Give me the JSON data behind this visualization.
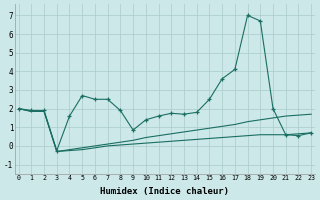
{
  "xlabel": "Humidex (Indice chaleur)",
  "bg_color": "#cce8e8",
  "grid_color": "#aacccc",
  "line_color": "#1a6e62",
  "ylim": [
    -1.5,
    7.6
  ],
  "xlim": [
    -0.3,
    23.3
  ],
  "yticks": [
    -1,
    0,
    1,
    2,
    3,
    4,
    5,
    6,
    7
  ],
  "xticks": [
    0,
    1,
    2,
    3,
    4,
    5,
    6,
    7,
    8,
    9,
    10,
    11,
    12,
    13,
    14,
    15,
    16,
    17,
    18,
    19,
    20,
    21,
    22,
    23
  ],
  "line1_x": [
    0,
    1,
    2,
    3,
    4,
    5,
    6,
    7,
    8,
    9,
    10,
    11,
    12,
    13,
    14,
    15,
    16,
    17,
    18,
    19,
    20,
    21,
    22,
    23
  ],
  "line1_y": [
    2.0,
    1.9,
    1.9,
    -0.25,
    1.6,
    2.7,
    2.5,
    2.5,
    1.9,
    0.85,
    1.4,
    1.6,
    1.75,
    1.7,
    1.8,
    2.5,
    3.6,
    4.1,
    7.0,
    6.7,
    2.0,
    0.6,
    0.55,
    0.7
  ],
  "line2_x": [
    0,
    1,
    2,
    3,
    4,
    5,
    6,
    7,
    8,
    9,
    10,
    11,
    12,
    13,
    14,
    15,
    16,
    17,
    18,
    19,
    20,
    21,
    22,
    23
  ],
  "line2_y": [
    2.0,
    1.85,
    1.85,
    -0.3,
    -0.2,
    -0.1,
    0.0,
    0.1,
    0.2,
    0.3,
    0.45,
    0.55,
    0.65,
    0.75,
    0.85,
    0.95,
    1.05,
    1.15,
    1.3,
    1.4,
    1.5,
    1.6,
    1.65,
    1.7
  ],
  "line3_x": [
    0,
    1,
    2,
    3,
    4,
    5,
    6,
    7,
    8,
    9,
    10,
    11,
    12,
    13,
    14,
    15,
    16,
    17,
    18,
    19,
    20,
    21,
    22,
    23
  ],
  "line3_y": [
    2.0,
    1.85,
    1.85,
    -0.3,
    -0.25,
    -0.2,
    -0.1,
    0.0,
    0.05,
    0.1,
    0.15,
    0.2,
    0.25,
    0.3,
    0.35,
    0.4,
    0.45,
    0.5,
    0.55,
    0.6,
    0.6,
    0.6,
    0.65,
    0.7
  ]
}
